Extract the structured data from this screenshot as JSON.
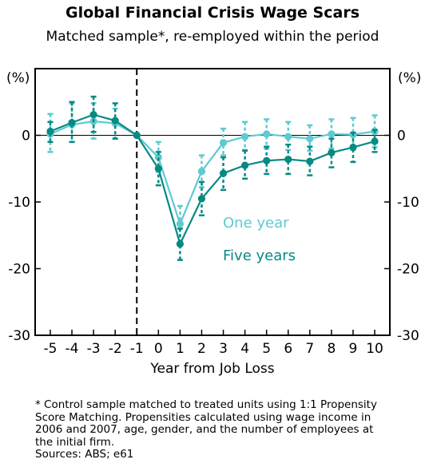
{
  "title": "Global Financial Crisis Wage Scars",
  "subtitle": "Matched sample*, re-employed within the period",
  "footnote": "* Control sample matched to treated units using 1:1 Propensity Score Matching. Propensities calculated using wage income in 2006 and 2007, age, gender, and the number of employees at the initial firm.",
  "sources": "Sources: ABS; e61",
  "chart_data": {
    "type": "line",
    "xlabel": "Year from Job Loss",
    "ylabel_left": "(%)",
    "ylabel_right": "(%)",
    "x": [
      -5,
      -4,
      -3,
      -2,
      -1,
      0,
      1,
      2,
      3,
      4,
      5,
      6,
      7,
      8,
      9,
      10
    ],
    "xlim": [
      -5.7,
      10.7
    ],
    "ylim": [
      -30,
      10
    ],
    "yticks": [
      0,
      -10,
      -20,
      -30
    ],
    "vertical_line_x": -1,
    "zero_line": true,
    "series": [
      {
        "name": "One year",
        "color": "#5ecad1",
        "values": [
          0.2,
          1.6,
          2.1,
          1.8,
          0.0,
          -3.3,
          -13.3,
          -5.4,
          -1.1,
          -0.2,
          0.2,
          -0.2,
          -0.5,
          0.2,
          0.1,
          0.6
        ],
        "ci_low": [
          -2.5,
          -1.0,
          -0.5,
          -0.5,
          0.0,
          -5.5,
          -16.0,
          -7.8,
          -3.0,
          -2.2,
          -2.0,
          -2.2,
          -2.3,
          -2.0,
          -2.2,
          -1.8
        ],
        "ci_high": [
          3.2,
          4.8,
          4.8,
          4.0,
          0.0,
          -1.0,
          -10.6,
          -3.0,
          1.0,
          2.0,
          2.4,
          2.0,
          1.5,
          2.4,
          2.6,
          3.0
        ]
      },
      {
        "name": "Five years",
        "color": "#068a83",
        "values": [
          0.6,
          1.9,
          3.1,
          2.2,
          0.0,
          -5.0,
          -16.3,
          -9.5,
          -5.7,
          -4.5,
          -3.8,
          -3.6,
          -3.9,
          -2.6,
          -1.8,
          -0.9
        ],
        "ci_low": [
          -1.0,
          -1.0,
          0.5,
          -0.5,
          0.0,
          -7.5,
          -18.7,
          -12.0,
          -8.2,
          -6.5,
          -5.8,
          -5.8,
          -6.0,
          -4.8,
          -4.0,
          -2.5
        ],
        "ci_high": [
          2.0,
          5.0,
          5.8,
          4.8,
          0.0,
          -2.5,
          -14.0,
          -7.0,
          -3.3,
          -2.3,
          -1.7,
          -1.4,
          -1.7,
          -0.5,
          0.4,
          0.8
        ]
      }
    ]
  }
}
